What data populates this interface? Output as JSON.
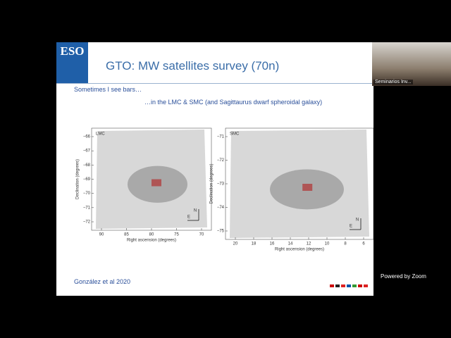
{
  "slide": {
    "title": "GTO: MW satellites survey (70n)",
    "subtitle": "Sometimes I see bars…",
    "subtitle2": "…in the LMC & SMC (and Sagittaurus dwarf spheroidal galaxy)",
    "reference": "González et al 2020",
    "logo": "ESO",
    "plots": [
      {
        "label": "LMC",
        "ylabel": "Declination (degrees)",
        "xlabel": "Right ascension (degrees)",
        "yticks": [
          "−66",
          "−67",
          "−68",
          "−69",
          "−70",
          "−71",
          "−72"
        ],
        "xticks": [
          "90",
          "85",
          "80",
          "75",
          "70"
        ],
        "north": "N",
        "east": "E"
      },
      {
        "label": "SMC",
        "ylabel": "Declination (degrees)",
        "xlabel": "Right ascension (degrees)",
        "yticks": [
          "−71",
          "−72",
          "−73",
          "−74",
          "−75"
        ],
        "xticks": [
          "20",
          "18",
          "16",
          "14",
          "12",
          "10",
          "8",
          "6"
        ],
        "north": "N",
        "east": "E"
      }
    ]
  },
  "video": {
    "name": "Seminarios Inv..."
  },
  "zoom": {
    "text": "Powered by Zoom"
  }
}
